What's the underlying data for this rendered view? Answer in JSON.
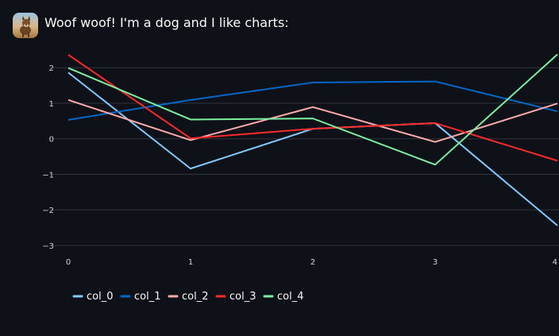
{
  "chat": {
    "avatar_icon": "dog-avatar-icon",
    "message": "Woof woof! I'm a dog and I like charts:"
  },
  "chart_data": {
    "type": "line",
    "x": [
      0,
      1,
      2,
      3,
      4
    ],
    "xlim": [
      0,
      4
    ],
    "ylim": [
      -3,
      2.25
    ],
    "x_ticks": [
      "0",
      "1",
      "2",
      "3",
      "4"
    ],
    "y_ticks": [
      {
        "value": 2,
        "label": "2"
      },
      {
        "value": 1,
        "label": "1"
      },
      {
        "value": 0,
        "label": "0"
      },
      {
        "value": -1,
        "label": "−1"
      },
      {
        "value": -2,
        "label": "−2"
      },
      {
        "value": -3,
        "label": "−3"
      }
    ],
    "grid": "horizontal",
    "legend_position": "bottom-left",
    "series": [
      {
        "name": "col_0",
        "color": "#83c9ff",
        "values": [
          1.75,
          -0.95,
          0.17,
          0.33,
          -2.55
        ]
      },
      {
        "name": "col_1",
        "color": "#0068c9",
        "values": [
          0.42,
          0.98,
          1.47,
          1.5,
          0.66
        ]
      },
      {
        "name": "col_2",
        "color": "#ffabab",
        "values": [
          0.98,
          -0.15,
          0.78,
          -0.2,
          0.88
        ]
      },
      {
        "name": "col_3",
        "color": "#ff2b2b",
        "values": [
          2.25,
          -0.1,
          0.17,
          0.33,
          -0.73
        ]
      },
      {
        "name": "col_4",
        "color": "#7defa1",
        "values": [
          1.88,
          0.43,
          0.46,
          -0.84,
          2.26
        ]
      }
    ]
  }
}
